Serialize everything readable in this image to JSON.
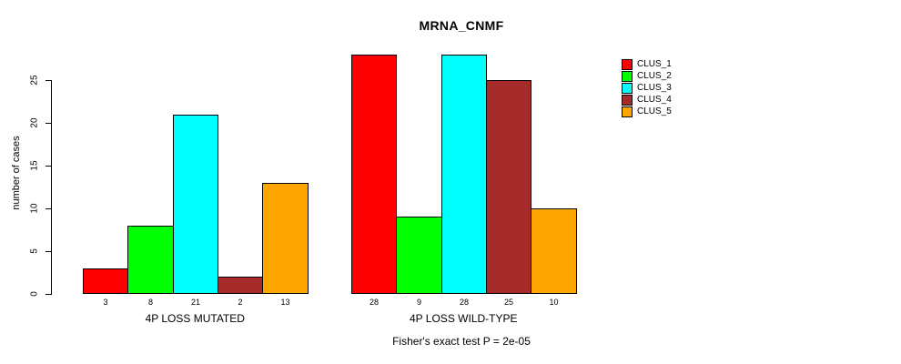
{
  "chart_data": {
    "type": "bar",
    "title": "MRNA_CNMF",
    "ylabel": "number of cases",
    "xlabel": "",
    "footnote": "Fisher's exact test P = 2e-05",
    "groups": [
      "4P LOSS MUTATED",
      "4P LOSS WILD-TYPE"
    ],
    "series": [
      {
        "name": "CLUS_1",
        "color": "#ff0000",
        "values": [
          3,
          28
        ]
      },
      {
        "name": "CLUS_2",
        "color": "#00ff00",
        "values": [
          8,
          9
        ]
      },
      {
        "name": "CLUS_3",
        "color": "#00ffff",
        "values": [
          21,
          28
        ]
      },
      {
        "name": "CLUS_4",
        "color": "#a52a2a",
        "values": [
          2,
          25
        ]
      },
      {
        "name": "CLUS_5",
        "color": "#ffa500",
        "values": [
          13,
          10
        ]
      }
    ],
    "bar_value_labels": true,
    "yticks": [
      0,
      5,
      10,
      15,
      20,
      25
    ],
    "ylim": [
      0,
      28
    ],
    "grid": false,
    "legend_position": "top-right",
    "background": "#ffffff",
    "bar_border_color": "#000000"
  }
}
